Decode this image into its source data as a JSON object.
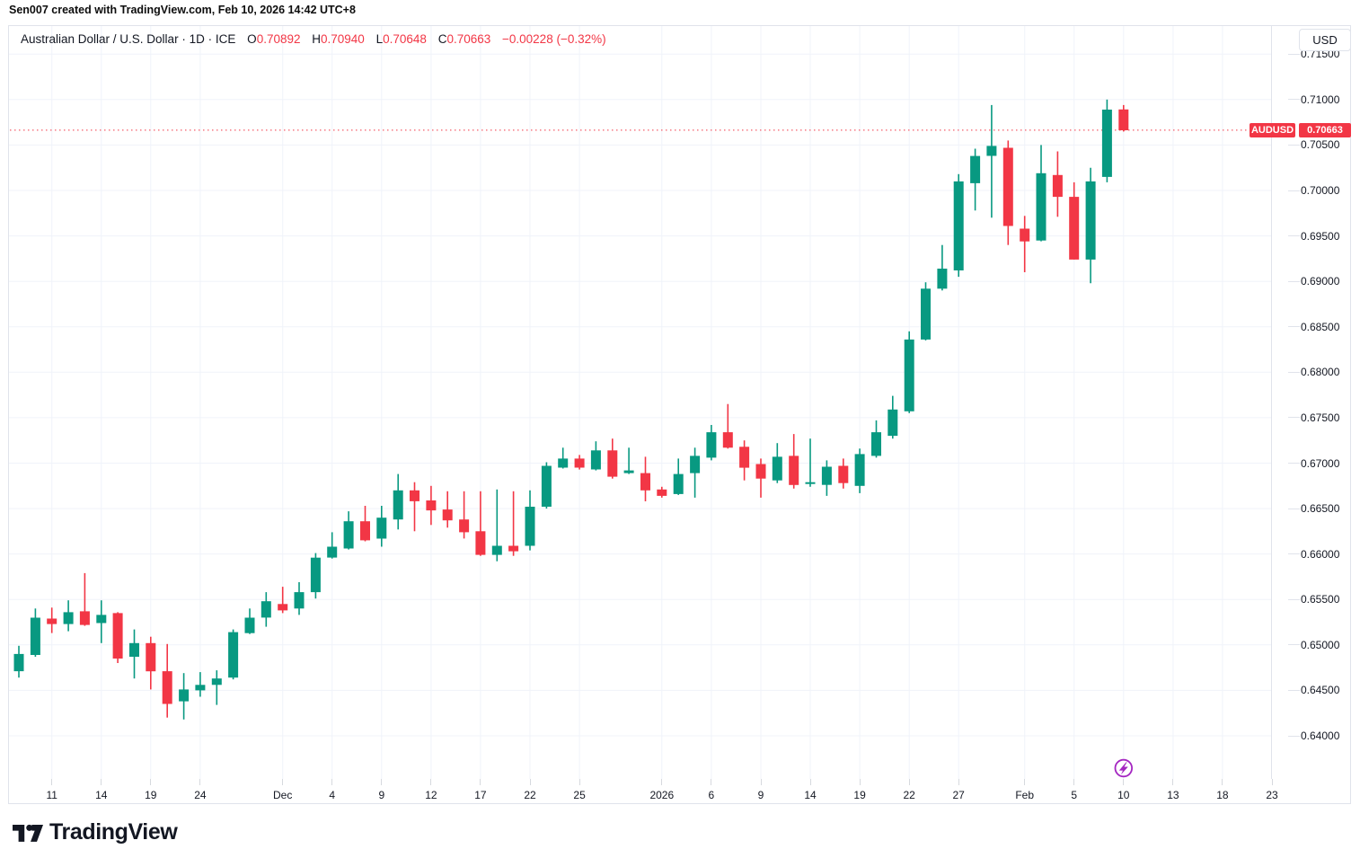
{
  "attribution": "Sen007 created with TradingView.com, Feb 10, 2026 14:42 UTC+8",
  "legend": {
    "title": "Australian Dollar / U.S. Dollar",
    "separator": "·",
    "interval": "1D",
    "exchange": "ICE",
    "o_label": "O",
    "o_value": "0.70892",
    "h_label": "H",
    "h_value": "0.70940",
    "l_label": "L",
    "l_value": "0.70648",
    "c_label": "C",
    "c_value": "0.70663",
    "change": "−0.00228 (−0.32%)"
  },
  "price_scale": {
    "currency_button": "USD",
    "decimals": 5,
    "ticks": [
      0.715,
      0.71,
      0.705,
      0.7,
      0.695,
      0.69,
      0.685,
      0.68,
      0.675,
      0.67,
      0.665,
      0.66,
      0.655,
      0.65,
      0.645,
      0.64
    ]
  },
  "last_price_label": {
    "symbol": "AUDUSD",
    "price": "0.70663"
  },
  "time_scale": {
    "labels": [
      {
        "text": "11",
        "i": 2
      },
      {
        "text": "14",
        "i": 5
      },
      {
        "text": "19",
        "i": 8
      },
      {
        "text": "24",
        "i": 11
      },
      {
        "text": "Dec",
        "i": 16
      },
      {
        "text": "4",
        "i": 19
      },
      {
        "text": "9",
        "i": 22
      },
      {
        "text": "12",
        "i": 25
      },
      {
        "text": "17",
        "i": 28
      },
      {
        "text": "22",
        "i": 31
      },
      {
        "text": "25",
        "i": 34
      },
      {
        "text": "2026",
        "i": 39
      },
      {
        "text": "6",
        "i": 42
      },
      {
        "text": "9",
        "i": 45
      },
      {
        "text": "14",
        "i": 48
      },
      {
        "text": "19",
        "i": 51
      },
      {
        "text": "22",
        "i": 54
      },
      {
        "text": "27",
        "i": 57
      },
      {
        "text": "Feb",
        "i": 61
      },
      {
        "text": "5",
        "i": 64
      },
      {
        "text": "10",
        "i": 67
      },
      {
        "text": "13",
        "i": 70
      },
      {
        "text": "18",
        "i": 73
      },
      {
        "text": "23",
        "i": 76
      }
    ]
  },
  "marker": {
    "kind": "lightning-badge",
    "bar_index": 67
  },
  "footer": {
    "brand": "TradingView"
  },
  "colors": {
    "up": "#089981",
    "down": "#F23645",
    "accent_red": "#F23645",
    "text": "#131722",
    "grid": "#F0F3FA",
    "border": "#E0E3EB",
    "tick": "#D6D9DE",
    "marker_purple": "#A426C1"
  },
  "chart_data": {
    "type": "candlestick",
    "title": "Australian Dollar / U.S. Dollar · 1D · ICE",
    "symbol": "AUDUSD",
    "timeframe": "1D",
    "ylabel": "USD",
    "ylim": [
      0.635,
      0.718
    ],
    "grid": true,
    "last_close": 0.70663,
    "candles": [
      {
        "d": "Nov 7",
        "o": 0.6471,
        "h": 0.6499,
        "l": 0.6464,
        "c": 0.649
      },
      {
        "d": "Nov 10",
        "o": 0.6489,
        "h": 0.654,
        "l": 0.6487,
        "c": 0.653
      },
      {
        "d": "Nov 11",
        "o": 0.6529,
        "h": 0.6541,
        "l": 0.6513,
        "c": 0.6523
      },
      {
        "d": "Nov 12",
        "o": 0.6523,
        "h": 0.6549,
        "l": 0.6515,
        "c": 0.6536
      },
      {
        "d": "Nov 13",
        "o": 0.6537,
        "h": 0.6579,
        "l": 0.6521,
        "c": 0.6522
      },
      {
        "d": "Nov 14",
        "o": 0.6524,
        "h": 0.6549,
        "l": 0.6502,
        "c": 0.6533
      },
      {
        "d": "Nov 17",
        "o": 0.6535,
        "h": 0.6536,
        "l": 0.648,
        "c": 0.6485
      },
      {
        "d": "Nov 18",
        "o": 0.6487,
        "h": 0.6517,
        "l": 0.6463,
        "c": 0.6502
      },
      {
        "d": "Nov 19",
        "o": 0.6502,
        "h": 0.6509,
        "l": 0.6451,
        "c": 0.6471
      },
      {
        "d": "Nov 20",
        "o": 0.6471,
        "h": 0.6501,
        "l": 0.642,
        "c": 0.6435
      },
      {
        "d": "Nov 21",
        "o": 0.6438,
        "h": 0.6469,
        "l": 0.6418,
        "c": 0.6451
      },
      {
        "d": "Nov 24",
        "o": 0.645,
        "h": 0.647,
        "l": 0.6443,
        "c": 0.6456
      },
      {
        "d": "Nov 25",
        "o": 0.6456,
        "h": 0.6472,
        "l": 0.6434,
        "c": 0.6463
      },
      {
        "d": "Nov 26",
        "o": 0.6464,
        "h": 0.6517,
        "l": 0.6462,
        "c": 0.6514
      },
      {
        "d": "Nov 27",
        "o": 0.6513,
        "h": 0.654,
        "l": 0.6512,
        "c": 0.653
      },
      {
        "d": "Nov 28",
        "o": 0.653,
        "h": 0.6558,
        "l": 0.652,
        "c": 0.6548
      },
      {
        "d": "Dec 1",
        "o": 0.6545,
        "h": 0.6564,
        "l": 0.6535,
        "c": 0.6538
      },
      {
        "d": "Dec 2",
        "o": 0.654,
        "h": 0.6569,
        "l": 0.6533,
        "c": 0.6558
      },
      {
        "d": "Dec 3",
        "o": 0.6558,
        "h": 0.6601,
        "l": 0.6551,
        "c": 0.6596
      },
      {
        "d": "Dec 4",
        "o": 0.6596,
        "h": 0.6624,
        "l": 0.6595,
        "c": 0.6608
      },
      {
        "d": "Dec 5",
        "o": 0.6606,
        "h": 0.6647,
        "l": 0.6605,
        "c": 0.6636
      },
      {
        "d": "Dec 8",
        "o": 0.6636,
        "h": 0.6653,
        "l": 0.6614,
        "c": 0.6615
      },
      {
        "d": "Dec 9",
        "o": 0.6617,
        "h": 0.6653,
        "l": 0.6608,
        "c": 0.664
      },
      {
        "d": "Dec 10",
        "o": 0.6638,
        "h": 0.6688,
        "l": 0.6627,
        "c": 0.667
      },
      {
        "d": "Dec 11",
        "o": 0.667,
        "h": 0.6679,
        "l": 0.6625,
        "c": 0.6658
      },
      {
        "d": "Dec 12",
        "o": 0.6659,
        "h": 0.6675,
        "l": 0.6632,
        "c": 0.6648
      },
      {
        "d": "Dec 15",
        "o": 0.6649,
        "h": 0.6669,
        "l": 0.6629,
        "c": 0.6637
      },
      {
        "d": "Dec 16",
        "o": 0.6638,
        "h": 0.6669,
        "l": 0.6617,
        "c": 0.6624
      },
      {
        "d": "Dec 17",
        "o": 0.6625,
        "h": 0.6669,
        "l": 0.6598,
        "c": 0.6599
      },
      {
        "d": "Dec 18",
        "o": 0.6599,
        "h": 0.6671,
        "l": 0.6592,
        "c": 0.6609
      },
      {
        "d": "Dec 19",
        "o": 0.6609,
        "h": 0.6669,
        "l": 0.6598,
        "c": 0.6603
      },
      {
        "d": "Dec 22",
        "o": 0.6609,
        "h": 0.667,
        "l": 0.6604,
        "c": 0.6652
      },
      {
        "d": "Dec 23",
        "o": 0.6652,
        "h": 0.6701,
        "l": 0.665,
        "c": 0.6697
      },
      {
        "d": "Dec 24",
        "o": 0.6695,
        "h": 0.6717,
        "l": 0.6694,
        "c": 0.6705
      },
      {
        "d": "Dec 25",
        "o": 0.6705,
        "h": 0.6709,
        "l": 0.6693,
        "c": 0.6695
      },
      {
        "d": "Dec 26",
        "o": 0.6693,
        "h": 0.6724,
        "l": 0.6692,
        "c": 0.6714
      },
      {
        "d": "Dec 29",
        "o": 0.6714,
        "h": 0.6727,
        "l": 0.6683,
        "c": 0.6685
      },
      {
        "d": "Dec 30",
        "o": 0.6689,
        "h": 0.6717,
        "l": 0.6688,
        "c": 0.6692
      },
      {
        "d": "Dec 31",
        "o": 0.6689,
        "h": 0.6707,
        "l": 0.6658,
        "c": 0.667
      },
      {
        "d": "Jan 1",
        "o": 0.6671,
        "h": 0.6674,
        "l": 0.6662,
        "c": 0.6664
      },
      {
        "d": "Jan 2",
        "o": 0.6666,
        "h": 0.6705,
        "l": 0.6665,
        "c": 0.6688
      },
      {
        "d": "Jan 5",
        "o": 0.6689,
        "h": 0.6717,
        "l": 0.6662,
        "c": 0.6708
      },
      {
        "d": "Jan 6",
        "o": 0.6706,
        "h": 0.6742,
        "l": 0.6703,
        "c": 0.6734
      },
      {
        "d": "Jan 7",
        "o": 0.6734,
        "h": 0.6765,
        "l": 0.6716,
        "c": 0.6717
      },
      {
        "d": "Jan 8",
        "o": 0.6718,
        "h": 0.6725,
        "l": 0.6681,
        "c": 0.6695
      },
      {
        "d": "Jan 9",
        "o": 0.6699,
        "h": 0.6705,
        "l": 0.6662,
        "c": 0.6683
      },
      {
        "d": "Jan 12",
        "o": 0.6681,
        "h": 0.6722,
        "l": 0.6678,
        "c": 0.6707
      },
      {
        "d": "Jan 13",
        "o": 0.6708,
        "h": 0.6732,
        "l": 0.6672,
        "c": 0.6676
      },
      {
        "d": "Jan 14",
        "o": 0.6677,
        "h": 0.6727,
        "l": 0.6674,
        "c": 0.6679
      },
      {
        "d": "Jan 15",
        "o": 0.6676,
        "h": 0.6703,
        "l": 0.6664,
        "c": 0.6696
      },
      {
        "d": "Jan 16",
        "o": 0.6697,
        "h": 0.6705,
        "l": 0.6672,
        "c": 0.6678
      },
      {
        "d": "Jan 19",
        "o": 0.6675,
        "h": 0.6716,
        "l": 0.6667,
        "c": 0.671
      },
      {
        "d": "Jan 20",
        "o": 0.6708,
        "h": 0.6747,
        "l": 0.6706,
        "c": 0.6734
      },
      {
        "d": "Jan 21",
        "o": 0.673,
        "h": 0.6774,
        "l": 0.6727,
        "c": 0.6759
      },
      {
        "d": "Jan 22",
        "o": 0.6757,
        "h": 0.6845,
        "l": 0.6755,
        "c": 0.6836
      },
      {
        "d": "Jan 23",
        "o": 0.6836,
        "h": 0.6899,
        "l": 0.6835,
        "c": 0.6892
      },
      {
        "d": "Jan 26",
        "o": 0.6892,
        "h": 0.694,
        "l": 0.689,
        "c": 0.6914
      },
      {
        "d": "Jan 27",
        "o": 0.6912,
        "h": 0.7018,
        "l": 0.6905,
        "c": 0.701
      },
      {
        "d": "Jan 28",
        "o": 0.7008,
        "h": 0.7046,
        "l": 0.6978,
        "c": 0.7038
      },
      {
        "d": "Jan 29",
        "o": 0.7038,
        "h": 0.7094,
        "l": 0.697,
        "c": 0.7049
      },
      {
        "d": "Jan 30",
        "o": 0.7047,
        "h": 0.7055,
        "l": 0.694,
        "c": 0.6961
      },
      {
        "d": "Feb 2",
        "o": 0.6958,
        "h": 0.6972,
        "l": 0.691,
        "c": 0.6944
      },
      {
        "d": "Feb 3",
        "o": 0.6945,
        "h": 0.705,
        "l": 0.6944,
        "c": 0.7019
      },
      {
        "d": "Feb 4",
        "o": 0.7017,
        "h": 0.7043,
        "l": 0.6971,
        "c": 0.6993
      },
      {
        "d": "Feb 5",
        "o": 0.6993,
        "h": 0.7009,
        "l": 0.6924,
        "c": 0.6924
      },
      {
        "d": "Feb 6",
        "o": 0.6924,
        "h": 0.7025,
        "l": 0.6898,
        "c": 0.701
      },
      {
        "d": "Feb 9",
        "o": 0.7015,
        "h": 0.71,
        "l": 0.7009,
        "c": 0.7089
      },
      {
        "d": "Feb 10",
        "o": 0.70892,
        "h": 0.7094,
        "l": 0.70648,
        "c": 0.70663
      }
    ]
  }
}
